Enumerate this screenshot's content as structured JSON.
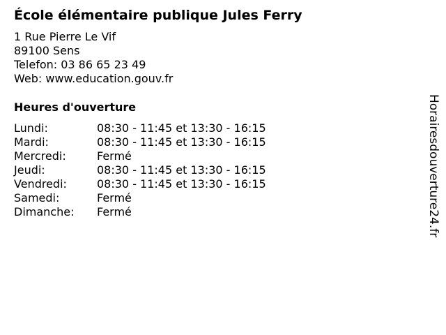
{
  "title": "École élémentaire publique Jules Ferry",
  "address": {
    "street": "1 Rue Pierre Le Vif",
    "city": "89100 Sens",
    "phone": "Telefon: 03 86 65 23 49",
    "web": "Web: www.education.gouv.fr"
  },
  "hours_heading": "Heures d'ouverture",
  "hours": [
    {
      "day": "Lundi:",
      "time": "08:30 - 11:45 et 13:30 - 16:15"
    },
    {
      "day": "Mardi:",
      "time": "08:30 - 11:45 et 13:30 - 16:15"
    },
    {
      "day": "Mercredi:",
      "time": "Fermé"
    },
    {
      "day": "Jeudi:",
      "time": "08:30 - 11:45 et 13:30 - 16:15"
    },
    {
      "day": "Vendredi:",
      "time": "08:30 - 11:45 et 13:30 - 16:15"
    },
    {
      "day": "Samedi:",
      "time": "Fermé"
    },
    {
      "day": "Dimanche:",
      "time": "Fermé"
    }
  ],
  "watermark": "Horairesdouverture24.fr"
}
